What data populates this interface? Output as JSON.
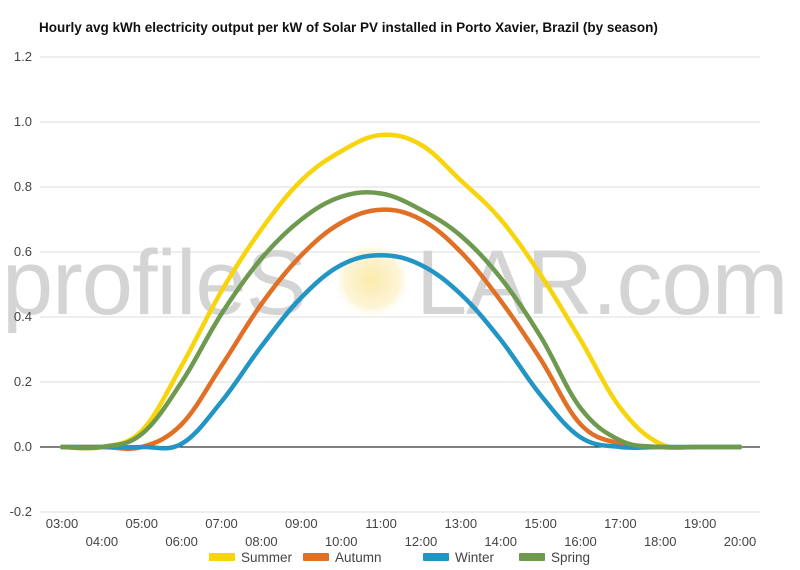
{
  "title": "Hourly avg kWh electricity output per kW of Solar PV installed in Porto Xavier, Brazil (by season)",
  "watermark": {
    "left": "profileS",
    "right": "LAR.com"
  },
  "colors": {
    "Summer": "#f7d40c",
    "Autumn": "#e07026",
    "Winter": "#2395c4",
    "Spring": "#6d9a4f",
    "grid": "#dddddd",
    "zero": "#000000"
  },
  "chart_data": {
    "type": "line",
    "title": "Hourly avg kWh electricity output per kW of Solar PV installed in Porto Xavier, Brazil (by season)",
    "xlabel": "",
    "ylabel": "",
    "ylim": [
      -0.2,
      1.2
    ],
    "yticks": [
      -0.2,
      0.0,
      0.2,
      0.4,
      0.6,
      0.8,
      1.0,
      1.2
    ],
    "ytick_labels": [
      "-0.2",
      "0.0",
      "0.2",
      "0.4",
      "0.6",
      "0.8",
      "1.0",
      "1.2"
    ],
    "x": [
      "03:00",
      "04:00",
      "05:00",
      "06:00",
      "07:00",
      "08:00",
      "09:00",
      "10:00",
      "11:00",
      "12:00",
      "13:00",
      "14:00",
      "15:00",
      "16:00",
      "17:00",
      "18:00",
      "19:00",
      "20:00"
    ],
    "x_top_labels": [
      "03:00",
      "05:00",
      "07:00",
      "09:00",
      "11:00",
      "13:00",
      "15:00",
      "17:00",
      "19:00"
    ],
    "x_bottom_labels": [
      "04:00",
      "06:00",
      "08:00",
      "10:00",
      "12:00",
      "14:00",
      "16:00",
      "18:00",
      "20:00"
    ],
    "legend_position": "bottom",
    "grid": true,
    "series": [
      {
        "name": "Summer",
        "values": [
          0.0,
          0.0,
          0.05,
          0.25,
          0.48,
          0.67,
          0.82,
          0.91,
          0.96,
          0.93,
          0.82,
          0.7,
          0.53,
          0.33,
          0.12,
          0.01,
          0.0,
          0.0
        ]
      },
      {
        "name": "Autumn",
        "values": [
          0.0,
          0.0,
          0.0,
          0.07,
          0.25,
          0.44,
          0.59,
          0.69,
          0.73,
          0.7,
          0.6,
          0.45,
          0.27,
          0.07,
          0.01,
          0.0,
          0.0,
          0.0
        ]
      },
      {
        "name": "Winter",
        "values": [
          0.0,
          0.0,
          0.0,
          0.01,
          0.14,
          0.31,
          0.46,
          0.56,
          0.59,
          0.56,
          0.47,
          0.33,
          0.16,
          0.03,
          0.0,
          0.0,
          0.0,
          0.0
        ]
      },
      {
        "name": "Spring",
        "values": [
          0.0,
          0.0,
          0.04,
          0.2,
          0.41,
          0.58,
          0.7,
          0.77,
          0.78,
          0.73,
          0.65,
          0.52,
          0.34,
          0.12,
          0.02,
          0.0,
          0.0,
          0.0
        ]
      }
    ]
  }
}
